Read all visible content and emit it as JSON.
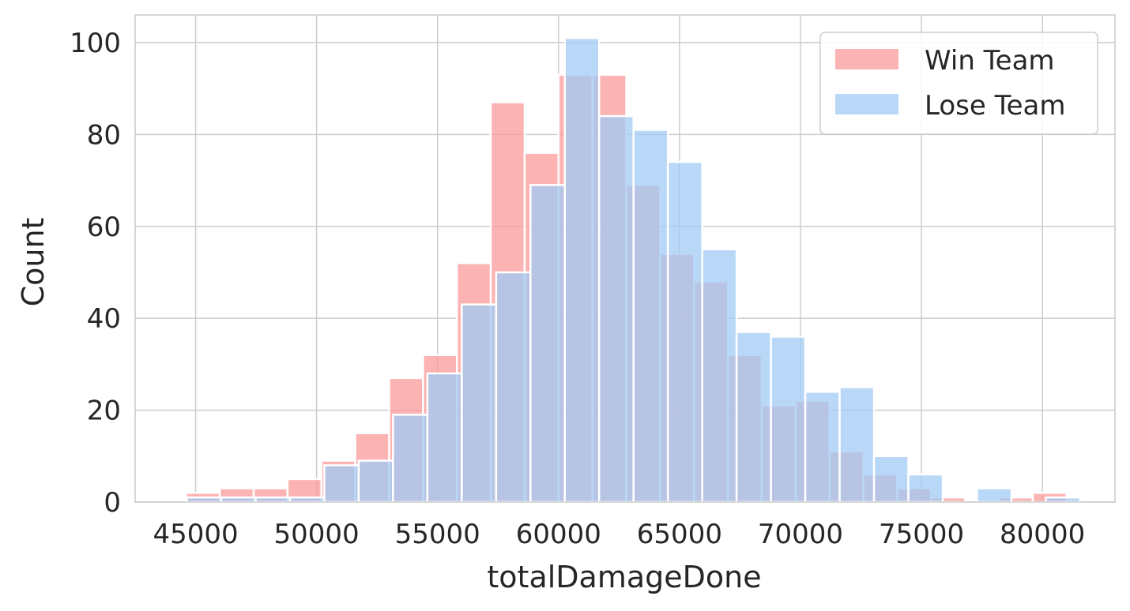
{
  "chart_data": {
    "type": "bar",
    "subtype": "histogram",
    "title": "",
    "xlabel": "totalDamageDone",
    "ylabel": "Count",
    "xlim": [
      42500,
      83000
    ],
    "ylim": [
      0,
      106
    ],
    "x_ticks": [
      45000,
      50000,
      55000,
      60000,
      65000,
      70000,
      75000,
      80000
    ],
    "y_ticks": [
      0,
      20,
      40,
      60,
      80,
      100
    ],
    "grid": true,
    "legend_position": "top-right",
    "series": [
      {
        "name": "Win Team",
        "color": "#fb9a99",
        "bin_width": 1400,
        "bins": [
          [
            44600,
            2
          ],
          [
            46000,
            3
          ],
          [
            47400,
            3
          ],
          [
            48800,
            5
          ],
          [
            50200,
            9
          ],
          [
            51600,
            15
          ],
          [
            53000,
            27
          ],
          [
            54400,
            32
          ],
          [
            55800,
            52
          ],
          [
            57200,
            87
          ],
          [
            58600,
            76
          ],
          [
            60000,
            93
          ],
          [
            61400,
            93
          ],
          [
            62800,
            69
          ],
          [
            64200,
            54
          ],
          [
            65600,
            48
          ],
          [
            67000,
            32
          ],
          [
            68400,
            21
          ],
          [
            69800,
            22
          ],
          [
            71200,
            11
          ],
          [
            72600,
            6
          ],
          [
            74000,
            3
          ],
          [
            75400,
            1
          ],
          [
            76800,
            0
          ],
          [
            78200,
            1
          ],
          [
            79600,
            2
          ]
        ]
      },
      {
        "name": "Lose Team",
        "color": "#a1c9f4",
        "bin_width": 1420,
        "bins": [
          [
            44640,
            1
          ],
          [
            46060,
            1
          ],
          [
            47480,
            1
          ],
          [
            48900,
            1
          ],
          [
            50320,
            8
          ],
          [
            51740,
            9
          ],
          [
            53160,
            19
          ],
          [
            54580,
            28
          ],
          [
            56000,
            43
          ],
          [
            57420,
            50
          ],
          [
            58840,
            69
          ],
          [
            60260,
            101
          ],
          [
            61680,
            84
          ],
          [
            63100,
            81
          ],
          [
            64520,
            74
          ],
          [
            65940,
            55
          ],
          [
            67360,
            37
          ],
          [
            68780,
            36
          ],
          [
            70200,
            24
          ],
          [
            71620,
            25
          ],
          [
            73040,
            10
          ],
          [
            74460,
            6
          ],
          [
            75880,
            0
          ],
          [
            77300,
            3
          ],
          [
            78720,
            0
          ],
          [
            80140,
            1
          ]
        ]
      }
    ]
  }
}
